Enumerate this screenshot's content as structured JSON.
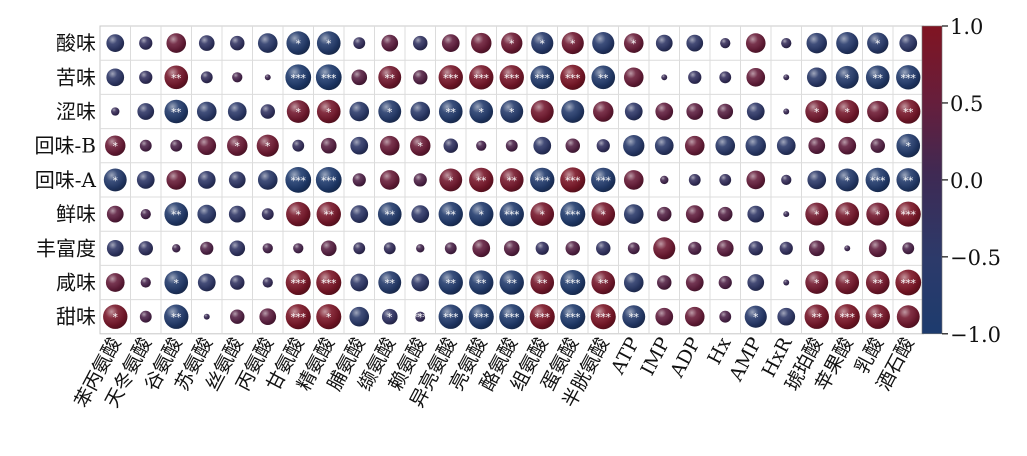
{
  "chart_data": {
    "type": "heatmap",
    "subtype": "correlation-bubble-matrix",
    "title": "",
    "xlabel": "",
    "ylabel": "",
    "rows": [
      "酸味",
      "苦味",
      "涩味",
      "回味-B",
      "回味-A",
      "鲜味",
      "丰富度",
      "咸味",
      "甜味"
    ],
    "columns": [
      "苯丙氨酸",
      "天冬氨酸",
      "谷氨酸",
      "苏氨酸",
      "丝氨酸",
      "丙氨酸",
      "甘氨酸",
      "精氨酸",
      "脯氨酸",
      "缬氨酸",
      "赖氨酸",
      "异亮氨酸",
      "亮氨酸",
      "酪氨酸",
      "组氨酸",
      "蛋氨酸",
      "半胱氨酸",
      "ATP",
      "IMP",
      "ADP",
      "Hx",
      "AMP",
      "HxR",
      "琥珀酸",
      "苹果酸",
      "乳酸",
      "酒石酸"
    ],
    "values": [
      [
        -0.45,
        -0.25,
        0.55,
        -0.35,
        -0.3,
        -0.55,
        -0.8,
        -0.8,
        -0.2,
        0.4,
        -0.3,
        0.45,
        0.6,
        0.65,
        -0.7,
        0.7,
        -0.7,
        0.55,
        -0.4,
        -0.4,
        -0.15,
        0.55,
        -0.15,
        -0.6,
        -0.7,
        -0.65,
        -0.45
      ],
      [
        -0.45,
        -0.25,
        0.8,
        -0.2,
        0.15,
        0.05,
        -0.95,
        -0.95,
        0.35,
        0.75,
        0.3,
        0.85,
        0.85,
        0.85,
        -0.8,
        0.9,
        -0.8,
        0.55,
        -0.05,
        -0.25,
        -0.2,
        0.5,
        -0.05,
        -0.55,
        -0.75,
        -0.8,
        -0.85
      ],
      [
        -0.1,
        -0.4,
        -0.8,
        -0.55,
        -0.5,
        -0.3,
        0.75,
        0.8,
        -0.55,
        -0.75,
        -0.55,
        -0.8,
        -0.8,
        -0.75,
        0.75,
        -0.75,
        0.6,
        -0.45,
        0.45,
        0.4,
        0.35,
        -0.45,
        -0.05,
        0.75,
        0.8,
        0.65,
        0.85
      ],
      [
        0.6,
        0.2,
        0.2,
        0.5,
        0.6,
        0.7,
        -0.2,
        0.35,
        -0.45,
        0.55,
        0.6,
        -0.3,
        0.15,
        0.2,
        -0.45,
        0.3,
        -0.25,
        -0.65,
        -0.5,
        0.55,
        -0.55,
        -0.6,
        -0.5,
        0.4,
        0.45,
        0.3,
        -0.8
      ],
      [
        -0.75,
        -0.45,
        0.55,
        -0.45,
        -0.4,
        -0.55,
        -0.95,
        -0.95,
        0.25,
        0.55,
        0.25,
        0.75,
        0.85,
        0.8,
        -0.85,
        0.9,
        -0.85,
        0.55,
        0.1,
        -0.2,
        -0.2,
        0.5,
        -0.15,
        -0.5,
        -0.75,
        -0.85,
        -0.8
      ],
      [
        0.4,
        0.15,
        -0.8,
        -0.5,
        -0.4,
        -0.2,
        0.85,
        0.85,
        -0.45,
        -0.8,
        -0.45,
        -0.85,
        -0.85,
        -0.85,
        0.8,
        -0.9,
        0.8,
        -0.55,
        0.3,
        0.45,
        0.3,
        -0.4,
        -0.05,
        0.75,
        0.8,
        0.75,
        0.9
      ],
      [
        -0.4,
        -0.3,
        0.1,
        0.25,
        -0.35,
        0.15,
        0.15,
        0.35,
        -0.2,
        -0.2,
        0.1,
        0.2,
        0.45,
        0.35,
        -0.25,
        0.3,
        -0.3,
        0.2,
        0.7,
        0.25,
        0.4,
        -0.3,
        -0.25,
        0.35,
        0.05,
        0.45,
        0.2
      ],
      [
        0.5,
        0.15,
        -0.8,
        -0.45,
        -0.3,
        -0.15,
        0.9,
        0.9,
        -0.45,
        -0.75,
        -0.45,
        -0.85,
        -0.85,
        -0.85,
        0.8,
        -0.9,
        0.8,
        -0.55,
        0.3,
        0.45,
        0.25,
        -0.4,
        -0.05,
        0.75,
        0.8,
        0.8,
        0.95
      ],
      [
        0.85,
        0.2,
        -0.85,
        -0.05,
        0.3,
        0.4,
        0.9,
        0.9,
        -0.55,
        -0.35,
        -0.15,
        -0.85,
        -0.9,
        -0.9,
        0.9,
        -0.9,
        0.9,
        -0.75,
        0.45,
        0.55,
        0.2,
        -0.7,
        -0.45,
        0.85,
        0.9,
        0.85,
        0.75
      ]
    ],
    "stars": [
      [
        "",
        "",
        "",
        "",
        "",
        "",
        "*",
        "*",
        "",
        "",
        "",
        "",
        "",
        "*",
        "*",
        "*",
        "",
        "*",
        "",
        "",
        "",
        "",
        "",
        "",
        "",
        "*",
        ""
      ],
      [
        "",
        "",
        "**",
        "",
        "",
        "",
        "***",
        "***",
        "",
        "**",
        "",
        "***",
        "***",
        "***",
        "***",
        "***",
        "**",
        "",
        "",
        "",
        "",
        "",
        "",
        "",
        "*",
        "**",
        "***"
      ],
      [
        "",
        "",
        "**",
        "",
        "",
        "",
        "*",
        "*",
        "",
        "*",
        "",
        "**",
        "*",
        "*",
        "",
        "",
        "",
        "",
        "",
        "",
        "",
        "",
        "",
        "*",
        "*",
        "",
        "**"
      ],
      [
        "*",
        "",
        "",
        "",
        "*",
        "*",
        "",
        "",
        "",
        "",
        "*",
        "",
        "",
        "",
        "",
        "",
        "",
        "",
        "",
        "",
        "",
        "",
        "",
        "",
        "",
        "",
        "*"
      ],
      [
        "*",
        "",
        "",
        "",
        "",
        "",
        "***",
        "***",
        "",
        "",
        "",
        "*",
        "**",
        "**",
        "***",
        "***",
        "***",
        "",
        "",
        "",
        "",
        "",
        "",
        "",
        "*",
        "***",
        "**"
      ],
      [
        "",
        "",
        "**",
        "",
        "",
        "",
        "*",
        "**",
        "",
        "**",
        "",
        "**",
        "*",
        "***",
        "*",
        "***",
        "*",
        "",
        "",
        "",
        "",
        "",
        "",
        "*",
        "*",
        "*",
        "***"
      ],
      [
        "",
        "",
        "",
        "",
        "",
        "",
        "",
        "",
        "",
        "",
        "",
        "",
        "",
        "",
        "",
        "",
        "",
        "",
        "",
        "",
        "",
        "",
        "",
        "",
        "",
        "",
        ""
      ],
      [
        "",
        "",
        "*",
        "",
        "",
        "",
        "***",
        "***",
        "",
        "**",
        "",
        "**",
        "**",
        "**",
        "**",
        "***",
        "**",
        "",
        "",
        "",
        "",
        "",
        "",
        "*",
        "*",
        "**",
        "***"
      ],
      [
        "*",
        "",
        "**",
        "",
        "",
        "",
        "***",
        "*",
        "",
        "*",
        "***",
        "***",
        "***",
        "***",
        "***",
        "***",
        "***",
        "**",
        "",
        "",
        "",
        "*",
        "",
        "**",
        "***",
        "**",
        ""
      ]
    ],
    "colorbar": {
      "min": -1.0,
      "max": 1.0,
      "ticks": [
        1.0,
        0.5,
        0.0,
        -0.5,
        -1.0
      ],
      "tick_labels": [
        "1.0",
        "0.5",
        "0.0",
        "−0.5",
        "−1.0"
      ],
      "colors": [
        "#1d3b6e",
        "#2b3a6a",
        "#3e2a55",
        "#6a1d3a",
        "#7e1422"
      ]
    },
    "grid": true,
    "legend_position": "right"
  }
}
